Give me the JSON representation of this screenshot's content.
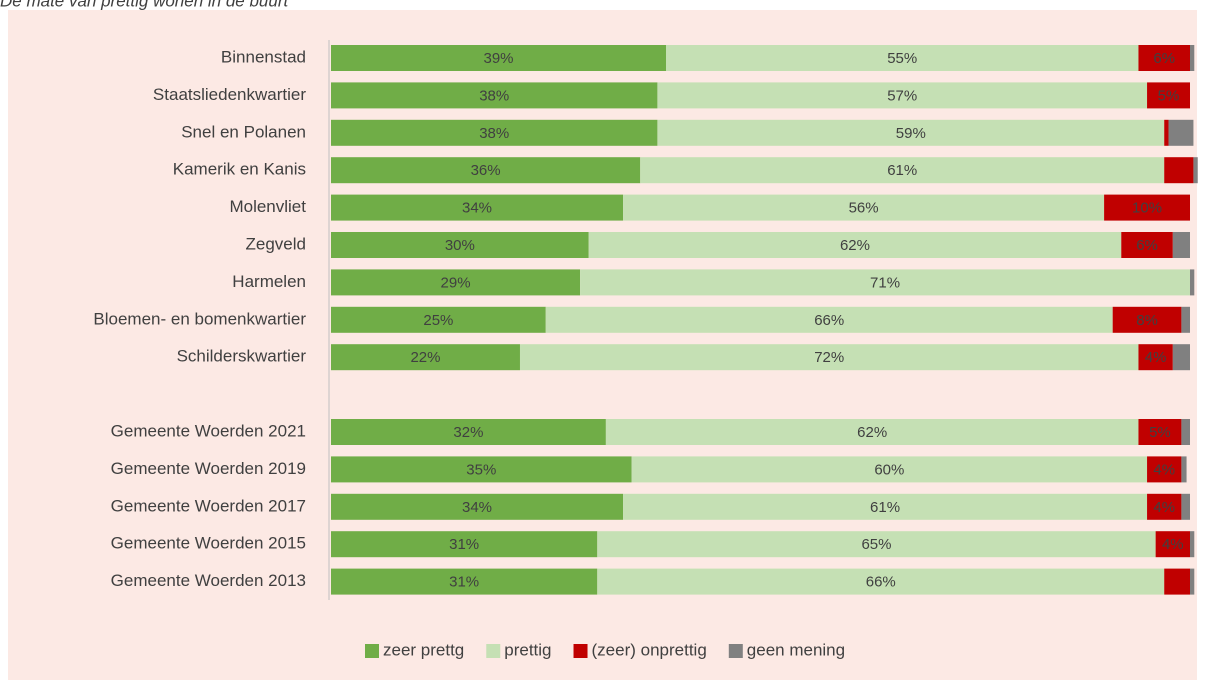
{
  "chart_data": {
    "type": "stacked-barh",
    "title": "De mate van prettig wonen in de buurt",
    "categories": [
      "Binnenstad",
      "Staatsliedenkwartier",
      "Snel en Polanen",
      "Kamerik en Kanis",
      "Molenvliet",
      "Zegveld",
      "Harmelen",
      "Bloemen- en bomenkwartier",
      "Schilderskwartier",
      null,
      "Gemeente Woerden 2021",
      "Gemeente Woerden 2019",
      "Gemeente Woerden 2017",
      "Gemeente Woerden 2015",
      "Gemeente Woerden 2013"
    ],
    "series": [
      {
        "name": "zeer prettg",
        "color": "#70ad47",
        "label_color": "#ffffff",
        "values": [
          39,
          38,
          38,
          36,
          34,
          30,
          29,
          25,
          22,
          null,
          32,
          35,
          34,
          31,
          31
        ],
        "value_labels": [
          "39%",
          "38%",
          "38%",
          "36%",
          "34%",
          "30%",
          "29%",
          "25%",
          "22%",
          null,
          "32%",
          "35%",
          "34%",
          "31%",
          "31%"
        ]
      },
      {
        "name": "prettig",
        "color": "#c5e0b4",
        "label_color": "#404040",
        "values": [
          55,
          57,
          59,
          61,
          56,
          62,
          71,
          66,
          72,
          null,
          62,
          60,
          61,
          65,
          66
        ],
        "value_labels": [
          "55%",
          "57%",
          "59%",
          "61%",
          "56%",
          "62%",
          "71%",
          "66%",
          "72%",
          null,
          "62%",
          "60%",
          "61%",
          "65%",
          "66%"
        ]
      },
      {
        "name": "(zeer) onprettig",
        "color": "#c00000",
        "label_color": "#ffffff",
        "values": [
          6,
          5,
          0.5,
          3.4,
          10,
          6,
          0,
          8,
          4,
          null,
          5,
          4,
          4,
          4,
          3
        ],
        "value_labels": [
          "6%",
          "5%",
          null,
          null,
          "10%",
          "6%",
          null,
          "8%",
          "4%",
          null,
          "5%",
          "4%",
          "4%",
          "4%",
          null
        ]
      },
      {
        "name": "geen mening",
        "color": "#808080",
        "values": [
          0.5,
          0,
          2.9,
          0.5,
          0,
          2,
          0.5,
          1,
          2,
          null,
          1,
          0.6,
          1,
          0.5,
          0.5
        ]
      }
    ],
    "xlim": [
      0,
      100
    ]
  }
}
